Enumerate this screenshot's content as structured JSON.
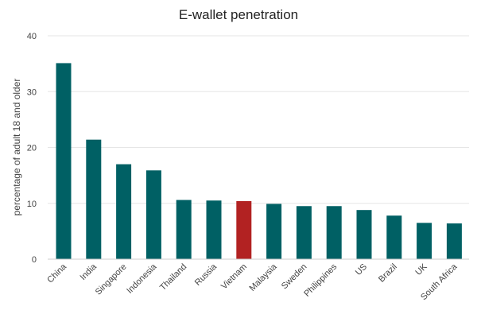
{
  "chart_data": {
    "type": "bar",
    "title": "E-wallet penetration",
    "ylabel": "percentage of adult 18 and older",
    "xlabel": "",
    "ylim": [
      0,
      40
    ],
    "yticks": [
      0,
      10,
      20,
      30,
      40
    ],
    "grid": true,
    "categories": [
      "China",
      "India",
      "Singapore",
      "Indonesia",
      "Thailand",
      "Russia",
      "Vietnam",
      "Malaysia",
      "Sweden",
      "Philippines",
      "US",
      "Brazil",
      "UK",
      "South Africa"
    ],
    "values": [
      35.1,
      21.4,
      17.0,
      15.9,
      10.6,
      10.5,
      10.4,
      9.9,
      9.5,
      9.5,
      8.8,
      7.8,
      6.5,
      6.4
    ],
    "highlight": "Vietnam",
    "colors": {
      "default": "#006064",
      "highlight": "#b22222"
    }
  }
}
